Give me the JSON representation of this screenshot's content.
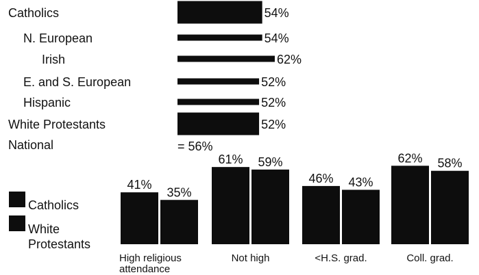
{
  "colors": {
    "bar": "#0d0d0d",
    "text": "#111111",
    "background": "#ffffff"
  },
  "chart_data": [
    {
      "type": "bar",
      "orientation": "horizontal",
      "title": "",
      "xlabel": "",
      "ylabel": "",
      "xlim": [
        0,
        100
      ],
      "categories": [
        "Catholics",
        "N. European",
        "Irish",
        "E. and S. European",
        "Hispanic",
        "White Protestants"
      ],
      "indent": [
        false,
        true,
        true,
        true,
        true,
        false
      ],
      "values": [
        54,
        54,
        62,
        52,
        52,
        52
      ],
      "value_labels": [
        "54%",
        "54%",
        "62%",
        "52%",
        "52%",
        "52%"
      ],
      "group_rows": [
        "Catholics",
        "White Protestants"
      ],
      "reference": {
        "label": "National",
        "value": 56,
        "value_label": "= 56%"
      }
    },
    {
      "type": "bar",
      "orientation": "vertical",
      "title": "",
      "xlabel": "",
      "ylabel": "",
      "ylim": [
        0,
        100
      ],
      "legend_position": "left",
      "categories": [
        "High religious attendance",
        "Not high",
        "<H.S. grad.",
        "Coll. grad."
      ],
      "category_lines": [
        [
          "High religious",
          "attendance"
        ],
        [
          "Not high"
        ],
        [
          "<H.S. grad."
        ],
        [
          "Coll. grad."
        ]
      ],
      "series": [
        {
          "name": "Catholics",
          "legend_lines": [
            "Catholics"
          ],
          "values": [
            41,
            61,
            46,
            62
          ],
          "labels": [
            "41%",
            "61%",
            "46%",
            "62%"
          ]
        },
        {
          "name": "White Protestants",
          "legend_lines": [
            "White",
            "Protestants"
          ],
          "values": [
            35,
            59,
            43,
            58
          ],
          "labels": [
            "35%",
            "59%",
            "43%",
            "58%"
          ]
        }
      ]
    }
  ]
}
